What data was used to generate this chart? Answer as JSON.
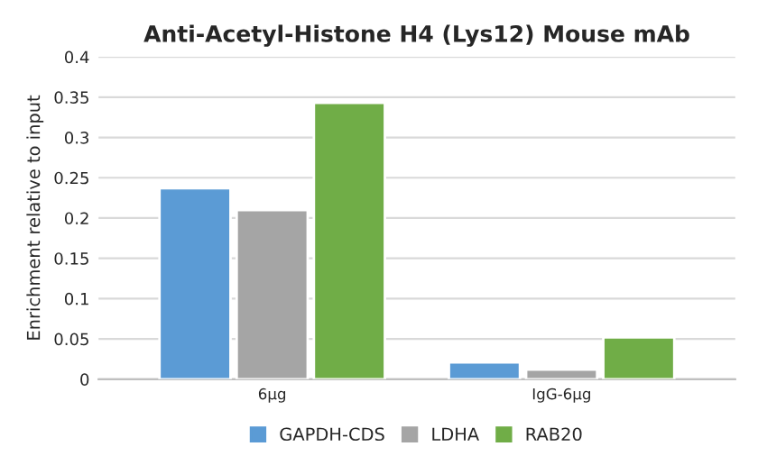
{
  "chart_data": {
    "type": "bar",
    "title": "Anti-Acetyl-Histone H4 (Lys12) Mouse mAb",
    "ylabel": "Enrichment relative to input",
    "categories": [
      "6μg",
      "IgG-6μg"
    ],
    "series": [
      {
        "name": "GAPDH-CDS",
        "color": "#5b9bd5",
        "values": [
          0.237,
          0.021
        ]
      },
      {
        "name": "LDHA",
        "color": "#a5a5a5",
        "values": [
          0.21,
          0.012
        ]
      },
      {
        "name": "RAB20",
        "color": "#70ad47",
        "values": [
          0.343,
          0.052
        ]
      }
    ],
    "ylim": [
      0,
      0.4
    ],
    "yticks": [
      0,
      0.05,
      0.1,
      0.15,
      0.2,
      0.25,
      0.3,
      0.35,
      0.4
    ],
    "grid": "y",
    "legend": "bottom"
  }
}
